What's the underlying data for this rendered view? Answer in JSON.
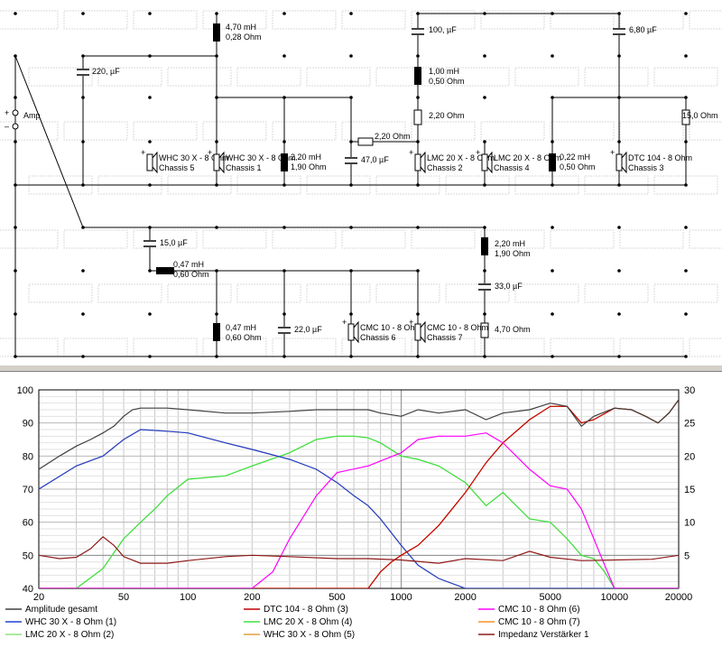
{
  "schematic": {
    "amp_plus": "+",
    "amp_minus": "–",
    "amp_label": "Amp",
    "components": [
      {
        "v1": "4,70 mH",
        "v2": "0,28 Ohm"
      },
      {
        "v1": "220, µF",
        "v2": ""
      },
      {
        "v1": "100, µF",
        "v2": ""
      },
      {
        "v1": "6,80 µF",
        "v2": ""
      },
      {
        "v1": "1,00 mH",
        "v2": "0,50 Ohm"
      },
      {
        "v1": "2,20 Ohm",
        "v2": ""
      },
      {
        "v1": "15,0 Ohm",
        "v2": ""
      },
      {
        "v1": "2,20 Ohm",
        "v2": ""
      },
      {
        "v1": "2,20 mH",
        "v2": "1,90 Ohm"
      },
      {
        "v1": "47,0 µF",
        "v2": ""
      },
      {
        "v1": "0,22 mH",
        "v2": "0,50 Ohm"
      },
      {
        "v1": "15,0 µF",
        "v2": ""
      },
      {
        "v1": "0,47 mH",
        "v2": "0,60 Ohm"
      },
      {
        "v1": "2,20 mH",
        "v2": "1,90 Ohm"
      },
      {
        "v1": "33,0 µF",
        "v2": ""
      },
      {
        "v1": "0,47 mH",
        "v2": "0,60 Ohm"
      },
      {
        "v1": "22,0 µF",
        "v2": ""
      },
      {
        "v1": "4,70 Ohm",
        "v2": ""
      }
    ],
    "drivers": [
      {
        "name": "WHC 30 X - 8 Ohm",
        "chassis": "Chassis 5"
      },
      {
        "name": "WHC 30 X - 8 Ohm",
        "chassis": "Chassis 1"
      },
      {
        "name": "LMC 20 X - 8 Ohm",
        "chassis": "Chassis 2"
      },
      {
        "name": "LMC 20 X - 8 Ohm",
        "chassis": "Chassis 4"
      },
      {
        "name": "DTC 104 - 8 Ohm",
        "chassis": "Chassis 3"
      },
      {
        "name": "CMC 10 - 8 Ohm",
        "chassis": "Chassis 6"
      },
      {
        "name": "CMC 10 - 8 Ohm",
        "chassis": "Chassis 7"
      }
    ]
  },
  "chart_data": {
    "type": "line",
    "x_scale": "log",
    "xlim": [
      20,
      20000
    ],
    "ylim": [
      40,
      100
    ],
    "y2lim": [
      0,
      30
    ],
    "x_ticks": [
      "20",
      "50",
      "100",
      "200",
      "500",
      "1000",
      "2000",
      "5000",
      "10000",
      "20000"
    ],
    "x_tick_values": [
      20,
      50,
      100,
      200,
      500,
      1000,
      2000,
      5000,
      10000,
      20000
    ],
    "y_ticks": [
      "40",
      "50",
      "60",
      "70",
      "80",
      "90",
      "100"
    ],
    "y2_ticks": [
      "5",
      "10",
      "15",
      "20",
      "25",
      "30"
    ],
    "grid": true,
    "legend_position": "bottom",
    "series": [
      {
        "name": "Amplitude gesamt",
        "color": "#404040",
        "axis": "left",
        "x": [
          20,
          25,
          30,
          35,
          40,
          45,
          50,
          55,
          60,
          70,
          80,
          100,
          150,
          200,
          300,
          400,
          500,
          700,
          800,
          1000,
          1200,
          1500,
          2000,
          2500,
          3000,
          4000,
          5000,
          6000,
          7000,
          8000,
          10000,
          12000,
          14000,
          16000,
          18000,
          20000
        ],
        "y": [
          76,
          80,
          83,
          85,
          87,
          89,
          92,
          94,
          94.5,
          94.5,
          94.5,
          94,
          93,
          93,
          93.5,
          94,
          94,
          94,
          93,
          92,
          94,
          93,
          94,
          91,
          93,
          94,
          96,
          95,
          89,
          92,
          94.5,
          94,
          92,
          90,
          93,
          97
        ]
      },
      {
        "name": "DTC 104 - 8 Ohm (3)",
        "color": "#c00000",
        "axis": "left",
        "x": [
          700,
          800,
          900,
          1000,
          1200,
          1500,
          2000,
          2500,
          3000,
          4000,
          5000,
          6000,
          7000,
          8000,
          10000,
          12000,
          14000,
          16000,
          18000,
          20000
        ],
        "y": [
          40,
          45,
          48,
          50,
          53,
          59,
          69,
          78,
          84,
          91,
          95,
          95,
          90,
          91,
          94.5,
          94,
          92,
          90,
          93,
          97
        ]
      },
      {
        "name": "CMC 10 - 8 Ohm (6)",
        "color": "#ff00ff",
        "axis": "left",
        "x": [
          200,
          250,
          300,
          400,
          500,
          700,
          1000,
          1200,
          1500,
          2000,
          2500,
          3000,
          4000,
          5000,
          6000,
          7000,
          8000,
          9000,
          10000
        ],
        "y": [
          40,
          45,
          55,
          68,
          75,
          77,
          81,
          85,
          86,
          86,
          87,
          84,
          76,
          71,
          70,
          64,
          55,
          47,
          40
        ]
      },
      {
        "name": "WHC 30 X - 8 Ohm (1)",
        "color": "#2040d0",
        "axis": "left",
        "x": [
          20,
          30,
          40,
          50,
          60,
          80,
          100,
          150,
          200,
          300,
          400,
          500,
          600,
          700,
          800,
          1000,
          1200,
          1500,
          2000
        ],
        "y": [
          70,
          77,
          80,
          85,
          88,
          87.5,
          87,
          84,
          82,
          79,
          76,
          72,
          68,
          65,
          61,
          53,
          47,
          43,
          40
        ]
      },
      {
        "name": "LMC 20 X - 8 Ohm (4)",
        "color": "#40e040",
        "axis": "left",
        "x": [
          30,
          40,
          50,
          60,
          70,
          80,
          100,
          150,
          200,
          300,
          400,
          500,
          600,
          700,
          800,
          1000,
          1200,
          1500,
          2000,
          2500,
          3000,
          4000,
          5000,
          6000,
          7000,
          8000,
          9000,
          10000
        ],
        "y": [
          40,
          46,
          55,
          60,
          64,
          68,
          73,
          74,
          77,
          81,
          85,
          86,
          86,
          85.5,
          84,
          80,
          79,
          77,
          72,
          65,
          69,
          61,
          60,
          55,
          50,
          49,
          45,
          40
        ]
      },
      {
        "name": "CMC 10 - 8 Ohm (7)",
        "color": "#ff9020",
        "axis": "left",
        "x": [
          700,
          800,
          900,
          1000,
          1200,
          1500,
          2000,
          2500,
          3000,
          4000,
          5000,
          6000,
          7000,
          8000,
          10000,
          12000,
          14000,
          16000,
          18000,
          20000
        ],
        "y": [
          40,
          45,
          48,
          50,
          53,
          59,
          69,
          78,
          84,
          91,
          95,
          95,
          90,
          91,
          94.5,
          94,
          92,
          90,
          93,
          97
        ]
      },
      {
        "name": "LMC 20 X - 8 Ohm (2)",
        "color": "#90e080",
        "axis": "left",
        "x": [
          30,
          40,
          50,
          60,
          70,
          80,
          100,
          150,
          200,
          300,
          400,
          500,
          600,
          700,
          800,
          1000,
          1200,
          1500,
          2000,
          2500,
          3000,
          4000,
          5000,
          6000,
          7000,
          8000,
          9000,
          10000
        ],
        "y": [
          40,
          46,
          55,
          60,
          64,
          68,
          73,
          74,
          77,
          81,
          85,
          86,
          86,
          85.5,
          84,
          80,
          79,
          77,
          72,
          65,
          69,
          61,
          60,
          55,
          50,
          49,
          45,
          40
        ]
      },
      {
        "name": "WHC 30 X - 8 Ohm (5)",
        "color": "#e0a040",
        "axis": "left",
        "x": [
          20,
          30,
          40,
          50,
          60,
          80,
          100,
          150,
          200,
          300,
          400,
          500,
          600,
          700,
          800,
          1000,
          1200,
          1500,
          2000
        ],
        "y": [
          70,
          77,
          80,
          85,
          88,
          87.5,
          87,
          84,
          82,
          79,
          76,
          72,
          68,
          65,
          61,
          53,
          47,
          43,
          40
        ]
      },
      {
        "name": "Impedanz Verstärker 1",
        "color": "#901818",
        "axis": "right",
        "x": [
          20,
          25,
          30,
          35,
          40,
          45,
          50,
          60,
          80,
          100,
          150,
          200,
          300,
          500,
          700,
          1000,
          1500,
          2000,
          3000,
          4000,
          5000,
          7000,
          10000,
          15000,
          20000
        ],
        "y": [
          5,
          4.5,
          4.7,
          6,
          7.8,
          6.5,
          4.8,
          3.8,
          3.8,
          4.2,
          4.8,
          5,
          4.8,
          4.5,
          4.5,
          4.3,
          3.8,
          4.5,
          4.2,
          5.6,
          4.7,
          4.2,
          4.3,
          4.4,
          5
        ]
      }
    ]
  }
}
